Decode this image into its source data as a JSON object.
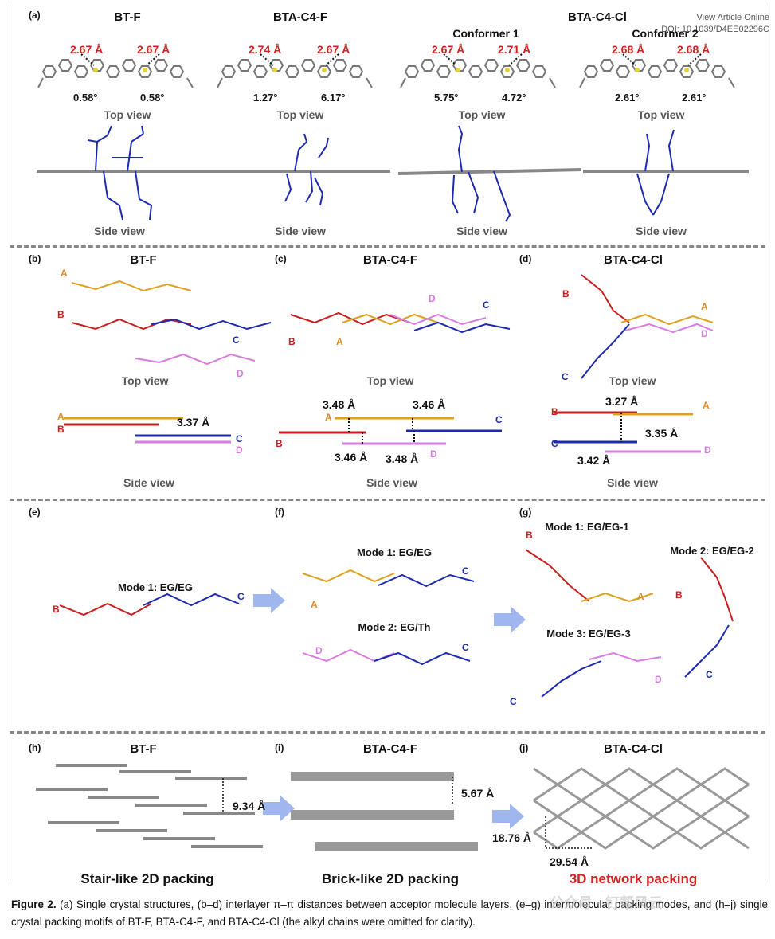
{
  "header_links": {
    "view_article": "View Article Online",
    "doi": "DOI: 10.1039/D4EE02296C"
  },
  "panel_a": {
    "tag": "(a)",
    "molecules": [
      {
        "title": "BT-F",
        "conformer": "",
        "dist_left": "2.67 Å",
        "dist_right": "2.67 Å",
        "ang_left": "0.58°",
        "ang_right": "0.58°"
      },
      {
        "title": "BTA-C4-F",
        "conformer": "",
        "dist_left": "2.74 Å",
        "dist_right": "2.67 Å",
        "ang_left": "1.27°",
        "ang_right": "6.17°"
      },
      {
        "title": "BTA-C4-Cl",
        "conformer": "Conformer 1",
        "dist_left": "2.67 Å",
        "dist_right": "2.71 Å",
        "ang_left": "5.75°",
        "ang_right": "4.72°"
      },
      {
        "title": "",
        "conformer": "Conformer 2",
        "dist_left": "2.68 Å",
        "dist_right": "2.68 Å",
        "ang_left": "2.61°",
        "ang_right": "2.61°"
      }
    ],
    "top_view": "Top view",
    "side_view": "Side view"
  },
  "panel_b": {
    "tag": "(b)",
    "title": "BT-F",
    "top_view": "Top view",
    "side_view": "Side view",
    "dist": "3.37 Å"
  },
  "panel_c": {
    "tag": "(c)",
    "title": "BTA-C4-F",
    "top_view": "Top view",
    "side_view": "Side view",
    "dist_1": "3.48 Å",
    "dist_2": "3.46 Å",
    "dist_3": "3.46 Å",
    "dist_4": "3.48 Å"
  },
  "panel_d": {
    "tag": "(d)",
    "title": "BTA-C4-Cl",
    "top_view": "Top view",
    "side_view": "Side view",
    "dist_1": "3.27 Å",
    "dist_2": "3.35 Å",
    "dist_3": "3.42 Å"
  },
  "labels": {
    "A": "A",
    "B": "B",
    "C": "C",
    "D": "D"
  },
  "panel_e": {
    "tag": "(e)",
    "mode_1": "Mode 1:  EG/EG"
  },
  "panel_f": {
    "tag": "(f)",
    "mode_1": "Mode 1: EG/EG",
    "mode_2": "Mode 2: EG/Th"
  },
  "panel_g": {
    "tag": "(g)",
    "mode_1": "Mode 1: EG/EG-1",
    "mode_2": "Mode 2: EG/EG-2",
    "mode_3": "Mode 3: EG/EG-3"
  },
  "panel_h": {
    "tag": "(h)",
    "title": "BT-F",
    "dist": "9.34 Å",
    "packing": "Stair-like 2D packing"
  },
  "panel_i": {
    "tag": "(i)",
    "title": "BTA-C4-F",
    "dist": "5.67 Å",
    "packing": "Brick-like 2D packing"
  },
  "panel_j": {
    "tag": "(j)",
    "title": "BTA-C4-Cl",
    "dist_v": "18.76 Å",
    "dist_h": "29.54 Å",
    "packing": "3D network packing"
  },
  "caption": {
    "label": "Figure 2.",
    "text": " (a) Single crystal structures, (b–d) interlayer π–π distances between acceptor molecule layers, (e–g) intermolecular packing modes, and (h–j) single crystal packing motifs of BT-F, BTA-C4-F, and BTA-C4-Cl (the alkyl chains were omitted for clarity)."
  },
  "watermark": "公众号 · 钉帮风云",
  "colors": {
    "red": "#d42020",
    "A": "#e08a20",
    "B": "#c81e1e",
    "C": "#1c2ab0",
    "D": "#d97be0",
    "arrow": "#8fa8e6"
  }
}
